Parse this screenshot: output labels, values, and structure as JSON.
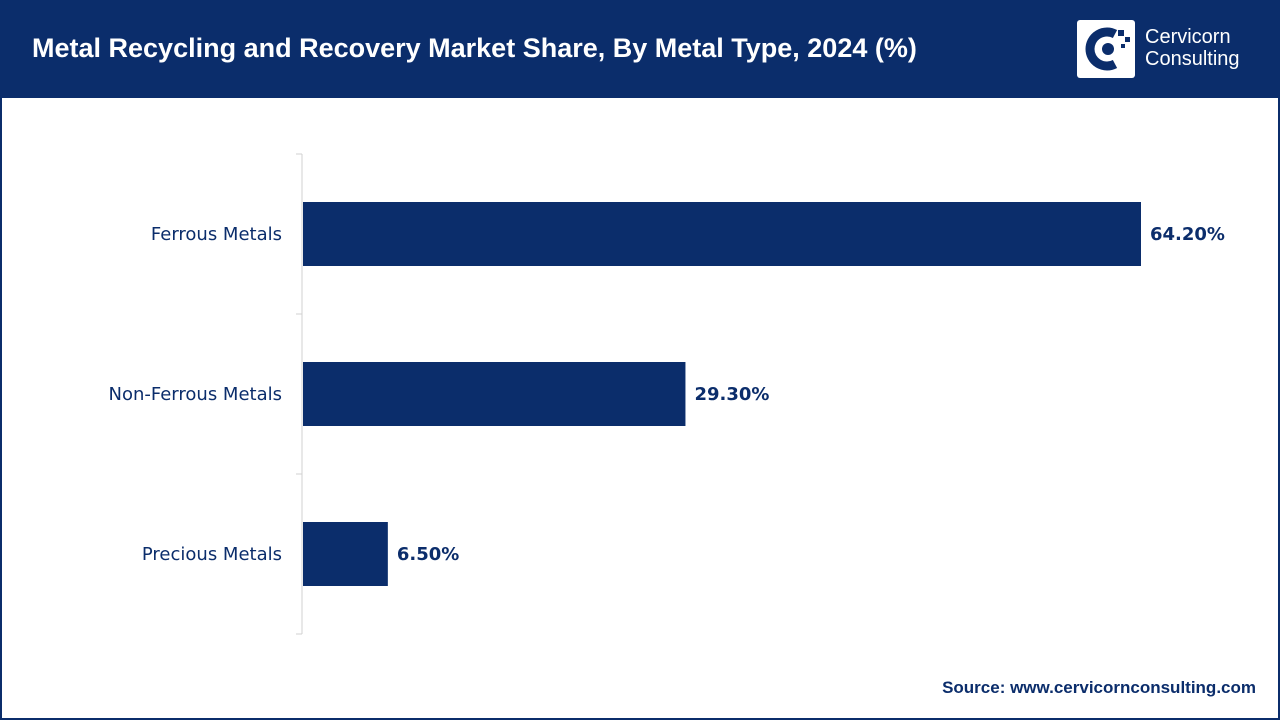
{
  "header": {
    "title": "Metal Recycling and Recovery Market Share, By Metal Type, 2024 (%)"
  },
  "logo": {
    "line1": "Cervicorn",
    "line2": "Consulting",
    "icon": "cervicorn-logo-icon"
  },
  "source": "Source: www.cervicornconsulting.com",
  "colors": {
    "header_bg": "#0b2d6b",
    "bar": "#0b2d6b",
    "text": "#0b2d6b"
  },
  "chart_data": {
    "type": "bar",
    "orientation": "horizontal",
    "title": "Metal Recycling and Recovery Market Share, By Metal Type, 2024 (%)",
    "categories": [
      "Ferrous Metals",
      "Non-Ferrous Metals",
      "Precious Metals"
    ],
    "values": [
      64.2,
      29.3,
      6.5
    ],
    "value_labels": [
      "64.20%",
      "29.30%",
      "6.50%"
    ],
    "xlabel": "",
    "ylabel": "",
    "xlim": [
      0,
      64.2
    ],
    "grid": false,
    "legend": "none"
  }
}
